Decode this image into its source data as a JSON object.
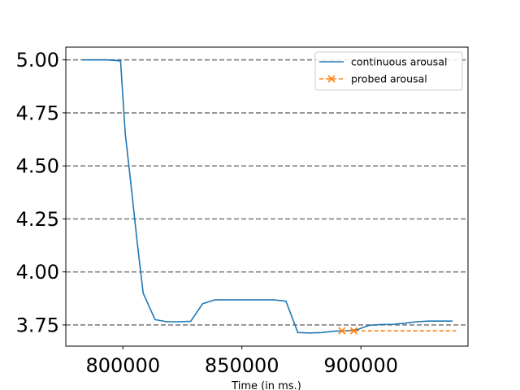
{
  "chart_data": {
    "type": "line",
    "title": "",
    "xlabel": "Time (in ms.)",
    "ylabel": "",
    "xlim": [
      776000,
      945000
    ],
    "ylim": [
      3.65,
      5.06
    ],
    "xticks": [
      800000,
      850000,
      900000
    ],
    "xtick_labels": [
      "800000",
      "850000",
      "900000"
    ],
    "yticks": [
      3.75,
      4.0,
      4.25,
      4.5,
      4.75,
      5.0
    ],
    "ytick_labels": [
      "3.75",
      "4.00",
      "4.25",
      "4.50",
      "4.75",
      "5.00"
    ],
    "grid": "horizontal dashed",
    "legend_position": "top-right",
    "series": [
      {
        "name": "continuous arousal",
        "color": "#1f77b4",
        "style": "solid",
        "x": [
          783000,
          788000,
          793000,
          796000,
          799000,
          801000,
          803500,
          806000,
          808500,
          813500,
          818500,
          823500,
          828500,
          833500,
          838500,
          843500,
          848500,
          853500,
          858500,
          863500,
          868500,
          873500,
          878500,
          883500,
          888500,
          893500,
          898500,
          903500,
          908500,
          913500,
          918500,
          923500,
          928500,
          933500,
          938500
        ],
        "y": [
          5.0,
          5.0,
          5.0,
          4.998,
          4.995,
          4.65,
          4.4,
          4.14,
          3.9,
          3.775,
          3.765,
          3.765,
          3.767,
          3.85,
          3.868,
          3.868,
          3.868,
          3.868,
          3.868,
          3.868,
          3.862,
          3.714,
          3.712,
          3.714,
          3.72,
          3.722,
          3.728,
          3.748,
          3.752,
          3.753,
          3.758,
          3.765,
          3.768,
          3.768,
          3.768
        ]
      },
      {
        "name": "probed arousal",
        "color": "#ff7f0e",
        "style": "dashed",
        "marker": "x",
        "x": [
          892000,
          897000,
          940000
        ],
        "y": [
          3.722,
          3.722,
          3.722
        ],
        "marked_points": [
          0,
          1
        ]
      }
    ]
  }
}
